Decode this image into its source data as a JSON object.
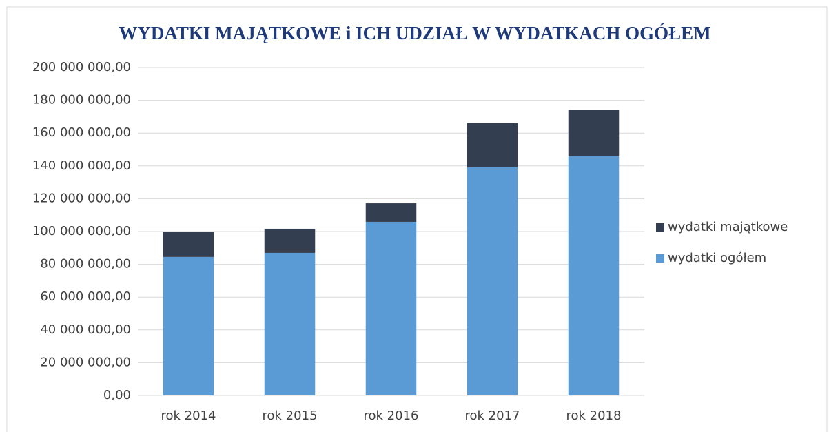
{
  "chart_data": {
    "type": "stacked_bar",
    "title": "WYDATKI MAJĄTKOWE i ICH UDZIAŁ W WYDATKACH OGÓŁEM",
    "categories": [
      "rok 2014",
      "rok 2015",
      "rok 2016",
      "rok 2017",
      "rok 2018"
    ],
    "series": [
      {
        "name": "wydatki ogółem",
        "color": "#5b9bd5",
        "values": [
          84500000,
          87000000,
          105900000,
          139100000,
          145800000
        ]
      },
      {
        "name": "wydatki majątkowe",
        "color": "#333f50",
        "values": [
          15500000,
          14700000,
          11300000,
          26900000,
          28200000
        ]
      }
    ],
    "ylim": [
      0,
      200000000
    ],
    "yticks": [
      {
        "value": 0,
        "label": "0,00"
      },
      {
        "value": 20000000,
        "label": "20 000 000,00"
      },
      {
        "value": 40000000,
        "label": "40 000 000,00"
      },
      {
        "value": 60000000,
        "label": "60 000 000,00"
      },
      {
        "value": 80000000,
        "label": "80 000 000,00"
      },
      {
        "value": 100000000,
        "label": "100 000 000,00"
      },
      {
        "value": 120000000,
        "label": "120 000 000,00"
      },
      {
        "value": 140000000,
        "label": "140 000 000,00"
      },
      {
        "value": 160000000,
        "label": "160 000 000,00"
      },
      {
        "value": 180000000,
        "label": "180 000 000,00"
      },
      {
        "value": 200000000,
        "label": "200 000 000,00"
      }
    ],
    "grid": true,
    "legend": "right"
  }
}
